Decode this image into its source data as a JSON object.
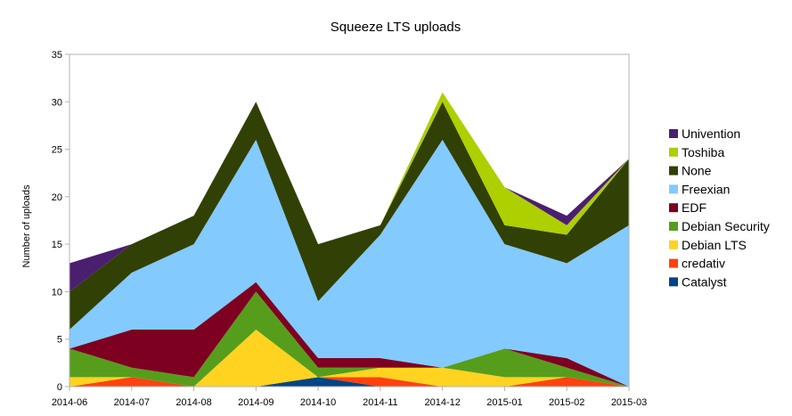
{
  "chart_data": {
    "type": "area",
    "stacked": true,
    "title": "Squeeze LTS uploads",
    "xlabel": "",
    "ylabel": "Number of uploads",
    "ylim": [
      0,
      35
    ],
    "yticks": [
      0,
      5,
      10,
      15,
      20,
      25,
      30,
      35
    ],
    "grid": false,
    "legend_position": "right",
    "categories": [
      "2014-06",
      "2014-07",
      "2014-08",
      "2014-09",
      "2014-10",
      "2014-11",
      "2014-12",
      "2015-01",
      "2015-02",
      "2015-03"
    ],
    "series": [
      {
        "name": "Catalyst",
        "color": "#004586",
        "values": [
          0,
          0,
          0,
          0,
          1,
          0,
          0,
          0,
          0,
          0
        ]
      },
      {
        "name": "credativ",
        "color": "#ff420e",
        "values": [
          0,
          1,
          0,
          0,
          0,
          1,
          0,
          0,
          1,
          0
        ]
      },
      {
        "name": "Debian LTS",
        "color": "#ffd320",
        "values": [
          1,
          0,
          0,
          6,
          0,
          1,
          2,
          1,
          0,
          0
        ]
      },
      {
        "name": "Debian Security",
        "color": "#579d1c",
        "values": [
          3,
          1,
          1,
          4,
          1,
          0,
          0,
          3,
          1,
          0
        ]
      },
      {
        "name": "EDF",
        "color": "#7e0021",
        "values": [
          0,
          4,
          5,
          1,
          1,
          1,
          0,
          0,
          1,
          0
        ]
      },
      {
        "name": "Freexian",
        "color": "#83caff",
        "values": [
          2,
          6,
          9,
          15,
          6,
          13,
          24,
          11,
          10,
          17
        ]
      },
      {
        "name": "None",
        "color": "#314004",
        "values": [
          4,
          3,
          3,
          4,
          6,
          1,
          4,
          2,
          3,
          7
        ]
      },
      {
        "name": "Toshiba",
        "color": "#aecf00",
        "values": [
          0,
          0,
          0,
          0,
          0,
          0,
          1,
          4,
          1,
          0
        ]
      },
      {
        "name": "Univention",
        "color": "#4b1f6f",
        "values": [
          3,
          0,
          0,
          0,
          0,
          0,
          0,
          0,
          1,
          0
        ]
      }
    ],
    "legend_order": [
      "Univention",
      "Toshiba",
      "None",
      "Freexian",
      "EDF",
      "Debian Security",
      "Debian LTS",
      "credativ",
      "Catalyst"
    ]
  }
}
